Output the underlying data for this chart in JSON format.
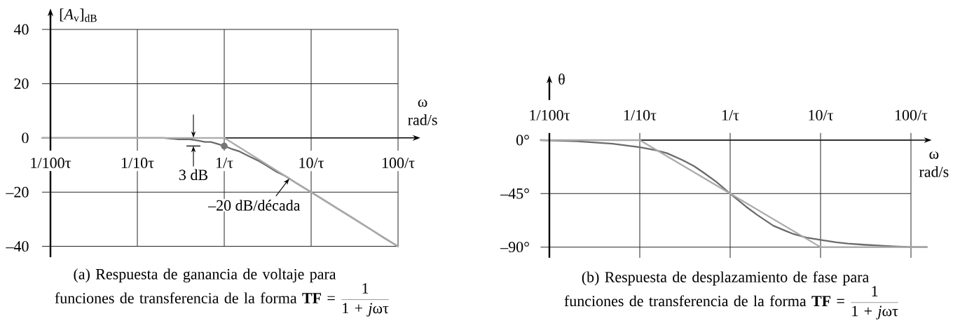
{
  "chart_data": [
    {
      "type": "line",
      "title": "(a) Respuesta de ganancia de voltaje para funciones de transferencia de la forma **TF** =",
      "xlabel": "ω rad/s",
      "ylabel": "[*A*$_{v}$]$_{dB}$",
      "log": "x",
      "grid": true,
      "xlim": [
        0.008,
        159
      ],
      "xticks": [
        {
          "value": 0.01,
          "label": "1/100τ"
        },
        {
          "value": 0.1,
          "label": "1/10τ"
        },
        {
          "value": 1,
          "label": "1/τ"
        },
        {
          "value": 10,
          "label": "10/τ"
        },
        {
          "value": 100,
          "label": "100/τ"
        }
      ],
      "ylim": [
        -44,
        46
      ],
      "yticks": [
        40,
        20,
        0,
        {
          "value": -20,
          "label": "–20"
        },
        {
          "value": -40,
          "label": "–40"
        }
      ],
      "series": [
        {
          "color": "#6b6b6b",
          "x": [
            0.008,
            0.05,
            0.1,
            0.15,
            0.2,
            0.3,
            0.4,
            0.5,
            0.6,
            0.7,
            0.8,
            1,
            1.2,
            1.5,
            2,
            2.5,
            3,
            4,
            5,
            7,
            10,
            15,
            20,
            30,
            50,
            70,
            100
          ],
          "values": [
            0,
            0,
            0,
            0,
            0,
            -0.5,
            -0.5,
            -1,
            -1.5,
            -1.5,
            -2,
            -3,
            -4,
            -5,
            -7,
            -8.5,
            -10,
            -12.5,
            -14,
            -17,
            -20,
            -23.5,
            -26,
            -29.5,
            -34,
            -37,
            -40
          ]
        },
        {
          "color": "#ababab",
          "x": [
            0.008,
            1,
            100
          ],
          "values": [
            0,
            0,
            -40
          ]
        },
        {
          "type": "scatter",
          "marker": "circle",
          "color": "#757575",
          "x": [
            1
          ],
          "values": [
            -3
          ]
        }
      ],
      "annotations": [
        "3 dB",
        {
          "text": "–20 dB/década",
          "x": 5.6,
          "y": -15
        },
        "\\frac{\\mbox{1}}{\\mbox{1 + \\textit{j}ωτ}}"
      ]
    },
    {
      "type": "line",
      "title": "(b) Respuesta de desplazamiento de fase para funciones de transferencia de la forma **TF** =",
      "xlabel": "ω rad/s",
      "ylabel": "θ",
      "log": "x",
      "grid": true,
      "xlim": [
        0.008,
        150
      ],
      "xticks": [
        {
          "value": 0.01,
          "label": "1/100τ"
        },
        {
          "value": 0.1,
          "label": "1/10τ"
        },
        {
          "value": 1,
          "label": "1/τ"
        },
        {
          "value": 10,
          "label": "10/τ"
        },
        {
          "value": 100,
          "label": "100/τ"
        }
      ],
      "ylim": [
        -99,
        6
      ],
      "yticks": [
        {
          "value": 0,
          "label": "0°"
        },
        {
          "value": -45,
          "label": "–45°"
        },
        {
          "value": -90,
          "label": "–90°"
        }
      ],
      "series": [
        {
          "color": "#6b6b6b",
          "x": [
            0.008,
            0.02,
            0.05,
            0.1,
            0.15,
            0.2,
            0.3,
            0.4,
            0.5,
            0.7,
            1,
            1.5,
            2,
            3,
            4,
            5,
            7,
            10,
            15,
            20,
            30,
            50,
            100,
            150
          ],
          "values": [
            0,
            -1,
            -3,
            -6,
            -8.5,
            -11,
            -17,
            -22,
            -27,
            -35,
            -45,
            -56,
            -63,
            -72,
            -76,
            -79,
            -82,
            -84,
            -86,
            -87,
            -88,
            -89,
            -90,
            -90
          ]
        },
        {
          "color": "#ababab",
          "x": [
            0.008,
            0.1,
            10,
            150
          ],
          "values": [
            0,
            0,
            -90,
            -90
          ]
        }
      ],
      "annotations": [
        "\\frac{\\mbox{1}}{\\mbox{1 + \\textit{j}ωτ}}"
      ]
    }
  ]
}
